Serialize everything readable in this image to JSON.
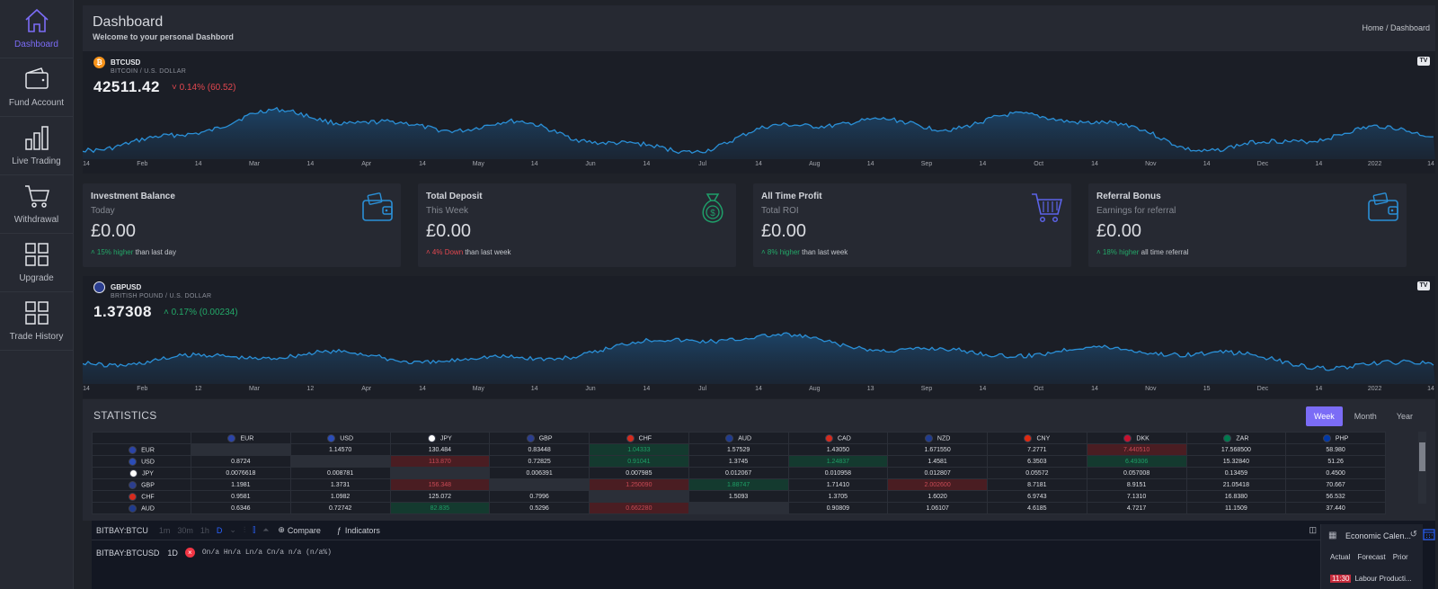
{
  "sidebar": {
    "items": [
      {
        "label": "Dashboard",
        "icon": "home-icon",
        "active": true
      },
      {
        "label": "Fund Account",
        "icon": "wallet-icon"
      },
      {
        "label": "Live Trading",
        "icon": "bar-chart-icon"
      },
      {
        "label": "Withdrawal",
        "icon": "cart-icon"
      },
      {
        "label": "Upgrade",
        "icon": "grid-icon"
      },
      {
        "label": "Trade History",
        "icon": "grid-icon"
      }
    ]
  },
  "header": {
    "title": "Dashboard",
    "subtitle": "Welcome to your personal Dashbord",
    "breadcrumb": "Home  /  Dashboard"
  },
  "btc_ticker": {
    "symbol": "BTCUSD",
    "name": "BITCOIN / U.S. DOLLAR",
    "price": "42511.42",
    "change": "0.14% (60.52)",
    "direction": "down",
    "coin_color": "#f7931a",
    "axis_labels": [
      "14",
      "Feb",
      "14",
      "Mar",
      "14",
      "Apr",
      "14",
      "May",
      "14",
      "Jun",
      "14",
      "Jul",
      "14",
      "Aug",
      "14",
      "Sep",
      "14",
      "Oct",
      "14",
      "Nov",
      "14",
      "Dec",
      "14",
      "2022",
      "14"
    ]
  },
  "cards": [
    {
      "title": "Investment Balance",
      "subtitle": "Today",
      "value": "£0.00",
      "delta": "15% higher",
      "delta_dir": "up",
      "suffix": " than last day",
      "icon": "wallet-icon"
    },
    {
      "title": "Total Deposit",
      "subtitle": "This Week",
      "value": "£0.00",
      "delta": "4% Down",
      "delta_dir": "down",
      "suffix": " than last week",
      "icon": "money-bag-icon"
    },
    {
      "title": "All Time Profit",
      "subtitle": "Total ROI",
      "value": "£0.00",
      "delta": "8% higher",
      "delta_dir": "up",
      "suffix": " than last week",
      "icon": "cart-icon"
    },
    {
      "title": "Referral Bonus",
      "subtitle": "Earnings for referral",
      "value": "£0.00",
      "delta": "18% higher",
      "delta_dir": "up",
      "suffix": " all time referral",
      "icon": "wallet-icon"
    }
  ],
  "gbp_ticker": {
    "symbol": "GBPUSD",
    "name": "BRITISH POUND / U.S. DOLLAR",
    "price": "1.37308",
    "change": "0.17% (0.00234)",
    "direction": "up",
    "axis_labels": [
      "14",
      "Feb",
      "12",
      "Mar",
      "12",
      "Apr",
      "14",
      "May",
      "14",
      "Jun",
      "14",
      "Jul",
      "14",
      "Aug",
      "13",
      "Sep",
      "14",
      "Oct",
      "14",
      "Nov",
      "15",
      "Dec",
      "14",
      "2022",
      "14"
    ]
  },
  "statistics": {
    "title": "STATISTICS",
    "tabs": [
      {
        "label": "Week",
        "active": true
      },
      {
        "label": "Month"
      },
      {
        "label": "Year"
      }
    ],
    "columns": [
      "EUR",
      "USD",
      "JPY",
      "GBP",
      "CHF",
      "AUD",
      "CAD",
      "NZD",
      "CNY",
      "DKK",
      "ZAR",
      "PHP"
    ],
    "flag_colors": [
      "#2b44a8",
      "#2b4db8",
      "#ffffff",
      "#2b3e8f",
      "#d52b1e",
      "#1f3b8f",
      "#d52b1e",
      "#1f3b8f",
      "#de2910",
      "#c8102e",
      "#007a4d",
      "#0038a8"
    ],
    "rows": [
      {
        "label": "EUR",
        "flag": "#2b44a8",
        "cells": [
          {
            "v": ""
          },
          {
            "v": "1.14570"
          },
          {
            "v": "130.484"
          },
          {
            "v": "0.83448"
          },
          {
            "v": "1.04333",
            "s": "pos"
          },
          {
            "v": "1.57529"
          },
          {
            "v": "1.43050"
          },
          {
            "v": "1.671550"
          },
          {
            "v": "7.2771"
          },
          {
            "v": "7.440510",
            "s": "neg"
          },
          {
            "v": "17.568500"
          },
          {
            "v": "58.980"
          }
        ]
      },
      {
        "label": "USD",
        "flag": "#2b4db8",
        "cells": [
          {
            "v": "0.8724"
          },
          {
            "v": ""
          },
          {
            "v": "113.870",
            "s": "neg"
          },
          {
            "v": "0.72825"
          },
          {
            "v": "0.91041",
            "s": "pos"
          },
          {
            "v": "1.3745"
          },
          {
            "v": "1.24837",
            "s": "pos"
          },
          {
            "v": "1.4581"
          },
          {
            "v": "6.3503"
          },
          {
            "v": "6.49306",
            "s": "pos"
          },
          {
            "v": "15.32840"
          },
          {
            "v": "51.26"
          }
        ]
      },
      {
        "label": "JPY",
        "flag": "#ffffff",
        "cells": [
          {
            "v": "0.0076618"
          },
          {
            "v": "0.008781"
          },
          {
            "v": ""
          },
          {
            "v": "0.006391"
          },
          {
            "v": "0.007985"
          },
          {
            "v": "0.012067"
          },
          {
            "v": "0.010958"
          },
          {
            "v": "0.012807"
          },
          {
            "v": "0.05572"
          },
          {
            "v": "0.057008"
          },
          {
            "v": "0.13459"
          },
          {
            "v": "0.4500"
          }
        ]
      },
      {
        "label": "GBP",
        "flag": "#2b3e8f",
        "cells": [
          {
            "v": "1.1981"
          },
          {
            "v": "1.3731"
          },
          {
            "v": "156.348",
            "s": "neg"
          },
          {
            "v": ""
          },
          {
            "v": "1.250090",
            "s": "neg"
          },
          {
            "v": "1.88747",
            "s": "pos"
          },
          {
            "v": "1.71410"
          },
          {
            "v": "2.002600",
            "s": "neg"
          },
          {
            "v": "8.7181"
          },
          {
            "v": "8.9151"
          },
          {
            "v": "21.05418"
          },
          {
            "v": "70.667"
          }
        ]
      },
      {
        "label": "CHF",
        "flag": "#d52b1e",
        "cells": [
          {
            "v": "0.9581"
          },
          {
            "v": "1.0982"
          },
          {
            "v": "125.072"
          },
          {
            "v": "0.7996"
          },
          {
            "v": ""
          },
          {
            "v": "1.5093"
          },
          {
            "v": "1.3705"
          },
          {
            "v": "1.6020"
          },
          {
            "v": "6.9743"
          },
          {
            "v": "7.1310"
          },
          {
            "v": "16.8380"
          },
          {
            "v": "56.532"
          }
        ]
      },
      {
        "label": "AUD",
        "flag": "#1f3b8f",
        "cells": [
          {
            "v": "0.6346"
          },
          {
            "v": "0.72742"
          },
          {
            "v": "82.835",
            "s": "pos"
          },
          {
            "v": "0.5296"
          },
          {
            "v": "0.662280",
            "s": "neg"
          },
          {
            "v": ""
          },
          {
            "v": "0.90809"
          },
          {
            "v": "1.06107"
          },
          {
            "v": "4.6185"
          },
          {
            "v": "4.7217"
          },
          {
            "v": "11.1509"
          },
          {
            "v": "37.440"
          }
        ]
      }
    ]
  },
  "widget": {
    "symbol": "BITBAY:BTCU",
    "intervals": [
      "1m",
      "30m",
      "1h",
      "D"
    ],
    "compare": "Compare",
    "indicators": "Indicators",
    "quote_symbol": "BITBAY:BTCUSD",
    "quote_interval": "1D",
    "ohlc": "On/a Hn/a Ln/a Cn/a n/a (n/a%)",
    "econ_title": "Economic Calen...",
    "econ_cols": "Actual Forecast Prior",
    "econ_time": "11:30",
    "econ_event": "Labour Producti..."
  },
  "colors": {
    "accent": "#7b6cf6",
    "up": "#23a868",
    "down": "#e2474f",
    "line": "#2a8fd6"
  }
}
